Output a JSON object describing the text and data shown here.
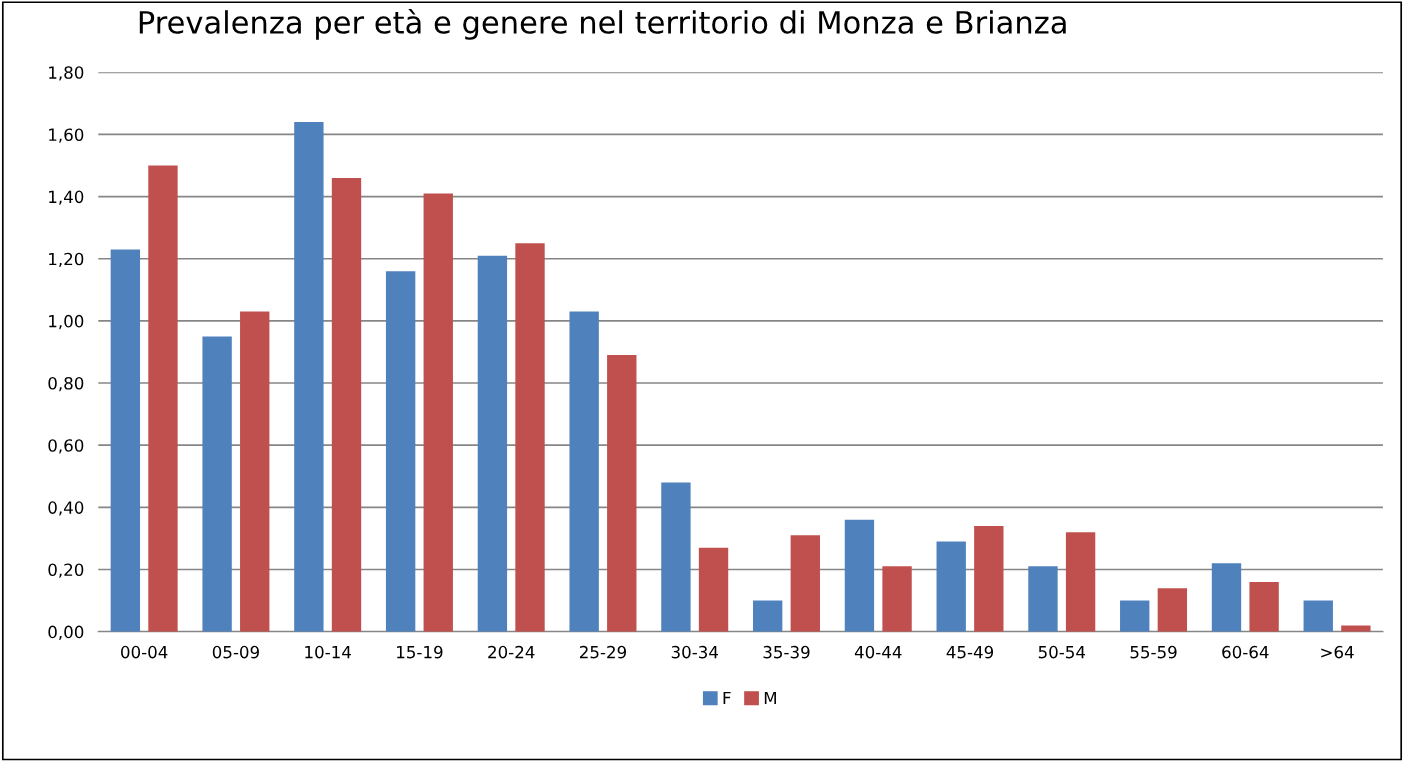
{
  "chart_data": {
    "type": "bar",
    "title": "Prevalenza per età e genere nel territorio di Monza e Brianza",
    "categories": [
      "00-04",
      "05-09",
      "10-14",
      "15-19",
      "20-24",
      "25-29",
      "30-34",
      "35-39",
      "40-44",
      "45-49",
      "50-54",
      "55-59",
      "60-64",
      ">64"
    ],
    "series": [
      {
        "name": "F",
        "color": "#4f81bd",
        "values": [
          1.23,
          0.95,
          1.64,
          1.16,
          1.21,
          1.03,
          0.48,
          0.1,
          0.36,
          0.29,
          0.21,
          0.1,
          0.22,
          0.1
        ]
      },
      {
        "name": "M",
        "color": "#c0504d",
        "values": [
          1.5,
          1.03,
          1.46,
          1.41,
          1.25,
          0.89,
          0.27,
          0.31,
          0.21,
          0.34,
          0.32,
          0.14,
          0.16,
          0.02
        ]
      }
    ],
    "ylim": [
      0,
      1.8
    ],
    "yticks": [
      {
        "value": 0,
        "label": "0,00"
      },
      {
        "value": 0.2,
        "label": "0,20"
      },
      {
        "value": 0.4,
        "label": "0,40"
      },
      {
        "value": 0.6,
        "label": "0,60"
      },
      {
        "value": 0.8,
        "label": "0,80"
      },
      {
        "value": 1.0,
        "label": "1,00"
      },
      {
        "value": 1.2,
        "label": "1,20"
      },
      {
        "value": 1.4,
        "label": "1,40"
      },
      {
        "value": 1.6,
        "label": "1,60"
      },
      {
        "value": 1.8,
        "label": "1,80"
      }
    ],
    "grid": "y",
    "legend": "bottom"
  }
}
